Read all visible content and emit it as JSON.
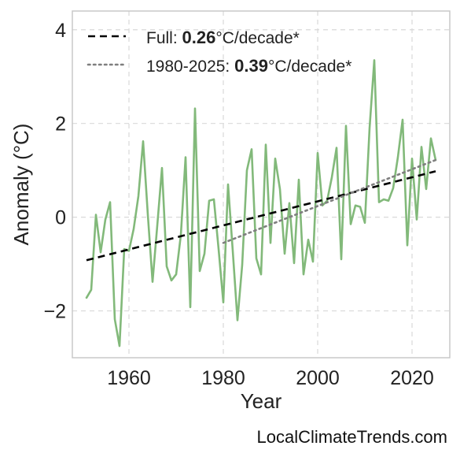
{
  "chart_data": {
    "type": "line",
    "xlabel": "Year",
    "ylabel": "Anomaly (°C)",
    "xlim": [
      1948,
      2028
    ],
    "ylim": [
      -3.0,
      4.4
    ],
    "xticks": [
      1960,
      1980,
      2000,
      2020
    ],
    "yticks": [
      -2,
      0,
      2,
      4
    ],
    "ytick_labels": [
      "−2",
      "0",
      "2",
      "4"
    ],
    "grid": true,
    "legend_position": "top-left",
    "series": [
      {
        "type": "line",
        "color": "#82b97a",
        "x": [
          1951,
          1952,
          1953,
          1954,
          1955,
          1956,
          1957,
          1958,
          1959,
          1960,
          1961,
          1962,
          1963,
          1964,
          1965,
          1966,
          1967,
          1968,
          1969,
          1970,
          1971,
          1972,
          1973,
          1974,
          1975,
          1976,
          1977,
          1978,
          1979,
          1980,
          1981,
          1982,
          1983,
          1984,
          1985,
          1986,
          1987,
          1988,
          1989,
          1990,
          1991,
          1992,
          1993,
          1994,
          1995,
          1996,
          1997,
          1998,
          1999,
          2000,
          2001,
          2002,
          2003,
          2004,
          2005,
          2006,
          2007,
          2008,
          2009,
          2010,
          2011,
          2012,
          2013,
          2014,
          2015,
          2016,
          2017,
          2018,
          2019,
          2020,
          2021,
          2022,
          2023,
          2024,
          2025
        ],
        "values": [
          -1.72,
          -1.55,
          0.05,
          -0.75,
          -0.05,
          0.32,
          -2.18,
          -2.75,
          -0.68,
          -0.72,
          -0.25,
          0.45,
          1.62,
          0.05,
          -1.38,
          -0.18,
          1.05,
          -1.05,
          -1.35,
          -1.22,
          -0.38,
          1.28,
          -1.92,
          2.32,
          -1.15,
          -0.78,
          0.35,
          0.38,
          -0.68,
          -1.82,
          0.7,
          -0.72,
          -2.2,
          -1.02,
          1.0,
          1.45,
          -0.88,
          -1.22,
          1.55,
          -0.55,
          1.25,
          0.6,
          -0.78,
          0.3,
          -0.98,
          0.8,
          -1.22,
          -0.48,
          -0.95,
          1.37,
          0.25,
          0.35,
          0.85,
          1.48,
          -0.9,
          1.95,
          -0.15,
          0.25,
          0.22,
          -0.12,
          1.9,
          3.35,
          0.32,
          0.38,
          0.35,
          0.62,
          1.28,
          2.08,
          -0.6,
          1.25,
          -0.05,
          1.5,
          0.6,
          1.68,
          1.22
        ]
      },
      {
        "type": "trend",
        "style": "dashed",
        "color": "#000000",
        "x": [
          1951,
          2025
        ],
        "values": [
          -0.92,
          0.98
        ]
      },
      {
        "type": "trend",
        "style": "dotted",
        "color": "#7f7f7f",
        "x": [
          1980,
          2025
        ],
        "values": [
          -0.55,
          1.22
        ]
      }
    ],
    "legend": [
      {
        "style": "dashed",
        "color": "#000000",
        "prefix": "Full: ",
        "bold": "0.26",
        "suffix": "°C/decade*"
      },
      {
        "style": "dotted",
        "color": "#7f7f7f",
        "prefix": "1980-2025: ",
        "bold": "0.39",
        "suffix": "°C/decade*"
      }
    ]
  },
  "watermark": "LocalClimateTrends.com"
}
